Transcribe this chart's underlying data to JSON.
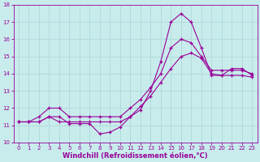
{
  "xlabel": "Windchill (Refroidissement éolien,°C)",
  "bg_color": "#c8ecec",
  "grid_color": "#b0d8d8",
  "line_color": "#990099",
  "xlim": [
    -0.5,
    23.5
  ],
  "ylim": [
    10,
    18
  ],
  "xticks": [
    0,
    1,
    2,
    3,
    4,
    5,
    6,
    7,
    8,
    9,
    10,
    11,
    12,
    13,
    14,
    15,
    16,
    17,
    18,
    19,
    20,
    21,
    22,
    23
  ],
  "yticks": [
    10,
    11,
    12,
    13,
    14,
    15,
    16,
    17,
    18
  ],
  "line1_x": [
    0,
    1,
    2,
    3,
    4,
    5,
    6,
    7,
    8,
    9,
    10,
    11,
    12,
    13,
    14,
    15,
    16,
    17,
    18,
    19,
    20,
    21,
    22,
    23
  ],
  "line1_y": [
    11.2,
    11.2,
    11.2,
    11.5,
    11.5,
    11.1,
    11.1,
    11.1,
    10.5,
    10.6,
    10.9,
    11.5,
    11.9,
    13.0,
    14.7,
    17.0,
    17.5,
    17.0,
    15.5,
    13.9,
    13.9,
    14.3,
    14.3,
    13.9
  ],
  "line2_x": [
    0,
    1,
    2,
    3,
    4,
    5,
    6,
    7,
    8,
    9,
    10,
    11,
    12,
    13,
    14,
    15,
    16,
    17,
    18,
    19,
    20,
    21,
    22,
    23
  ],
  "line2_y": [
    11.2,
    11.2,
    11.2,
    11.5,
    11.2,
    11.2,
    11.2,
    11.2,
    11.2,
    11.2,
    11.2,
    11.5,
    12.1,
    12.7,
    13.5,
    14.3,
    15.0,
    15.2,
    14.9,
    14.0,
    13.9,
    13.9,
    13.9,
    13.8
  ],
  "line3_x": [
    0,
    1,
    2,
    3,
    4,
    5,
    6,
    7,
    8,
    9,
    10,
    11,
    12,
    13,
    14,
    15,
    16,
    17,
    18,
    19,
    20,
    21,
    22,
    23
  ],
  "line3_y": [
    11.2,
    11.2,
    11.5,
    12.0,
    12.0,
    11.5,
    11.5,
    11.5,
    11.5,
    11.5,
    11.5,
    12.0,
    12.5,
    13.2,
    14.0,
    15.5,
    16.0,
    15.8,
    15.0,
    14.2,
    14.2,
    14.2,
    14.2,
    14.0
  ]
}
